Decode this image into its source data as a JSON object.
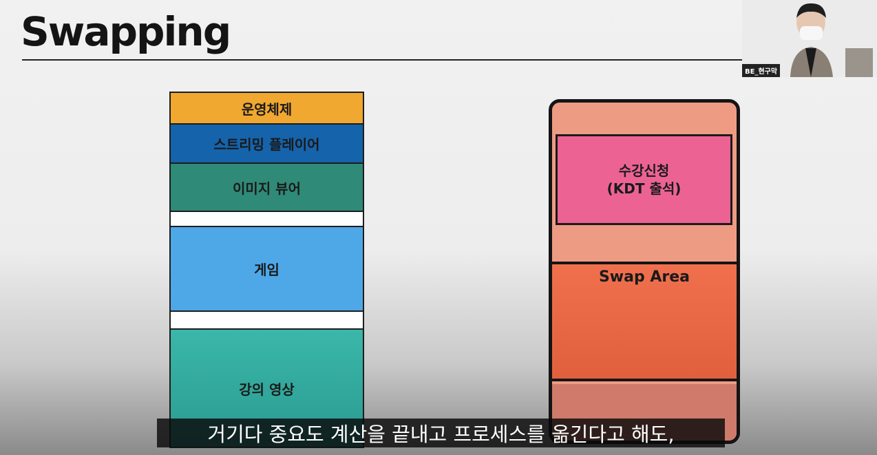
{
  "slide": {
    "title": "Swapping"
  },
  "memory": {
    "blocks": [
      {
        "label": "운영체제",
        "color": "#f0a830"
      },
      {
        "label": "스트리밍 플레이어",
        "color": "#1563ab"
      },
      {
        "label": "이미지 뷰어",
        "color": "#2f8a78"
      },
      {
        "label": "",
        "color": "#ffffff"
      },
      {
        "label": "게임",
        "color": "#4ea8e8"
      },
      {
        "label": "",
        "color": "#ffffff"
      },
      {
        "label": "강의 영상",
        "color": "#3bb7aa"
      }
    ]
  },
  "disk": {
    "process_line1": "수강신청",
    "process_line2": "(KDT 출석)",
    "swap_area_label": "Swap Area"
  },
  "webcam": {
    "participant_name": "BE_현구막"
  },
  "caption": {
    "text": "거기다 중요도 계산을 끝내고 프로세스를 옮긴다고 해도,"
  }
}
